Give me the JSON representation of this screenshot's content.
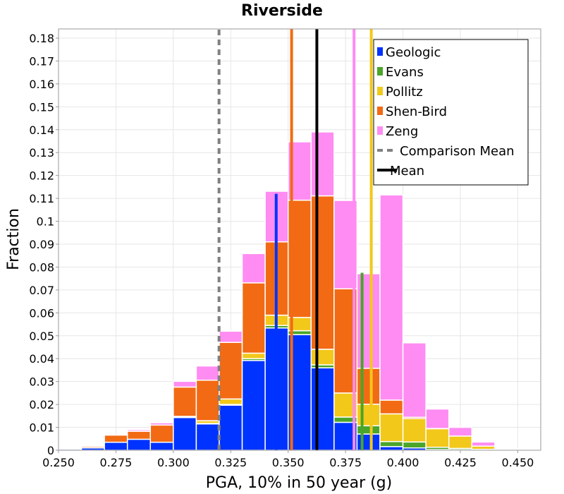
{
  "chart_data": {
    "type": "bar",
    "stacked": true,
    "title": "Riverside",
    "xlabel": "PGA, 10% in 50 year (g)",
    "ylabel": "Fraction",
    "xlim": [
      0.25,
      0.46
    ],
    "ylim": [
      0,
      0.184
    ],
    "bin_width": 0.01,
    "grid": true,
    "legend_position": "top-right",
    "x_ticks": [
      "0.250",
      "0.275",
      "0.300",
      "0.325",
      "0.350",
      "0.375",
      "0.400",
      "0.425",
      "0.450"
    ],
    "y_ticks": [
      "0",
      "0.01",
      "0.02",
      "0.03",
      "0.04",
      "0.05",
      "0.06",
      "0.07",
      "0.08",
      "0.09",
      "0.1",
      "0.11",
      "0.12",
      "0.13",
      "0.14",
      "0.15",
      "0.16",
      "0.17",
      "0.18"
    ],
    "x": [
      0.255,
      0.265,
      0.275,
      0.285,
      0.295,
      0.305,
      0.315,
      0.325,
      0.335,
      0.345,
      0.355,
      0.365,
      0.375,
      0.385,
      0.395,
      0.405,
      0.415,
      0.425,
      0.435,
      0.445,
      0.455
    ],
    "series": [
      {
        "name": "Geologic",
        "color": "#0033ff",
        "values": [
          0.0005,
          0.001,
          0.0035,
          0.0048,
          0.0035,
          0.0143,
          0.0115,
          0.0197,
          0.0392,
          0.0534,
          0.0505,
          0.036,
          0.0122,
          0.0071,
          0.0016,
          0.001,
          0.0003,
          0.0002,
          0.0001,
          0.0,
          0.0
        ]
      },
      {
        "name": "Evans",
        "color": "#4aa52a",
        "values": [
          0.0,
          0.0,
          0.0,
          0.0,
          0.0,
          0.0001,
          0.0002,
          0.0003,
          0.0008,
          0.0011,
          0.0017,
          0.0013,
          0.0023,
          0.0036,
          0.0022,
          0.0026,
          0.001,
          0.0006,
          0.0003,
          0.0001,
          0.0
        ]
      },
      {
        "name": "Pollitz",
        "color": "#f2c81a",
        "values": [
          0.0,
          0.0,
          0.0,
          0.0,
          0.0,
          0.0004,
          0.0012,
          0.0024,
          0.0024,
          0.0045,
          0.0058,
          0.0068,
          0.0105,
          0.0094,
          0.0121,
          0.0102,
          0.0081,
          0.0054,
          0.0014,
          0.0004,
          0.0002
        ]
      },
      {
        "name": "Shen-Bird",
        "color": "#f26a14",
        "values": [
          0.0004,
          0.0006,
          0.0031,
          0.0035,
          0.0075,
          0.0128,
          0.0177,
          0.0247,
          0.0307,
          0.032,
          0.0512,
          0.067,
          0.0455,
          0.0157,
          0.006,
          0.0006,
          0.0001,
          0.0,
          0.0,
          0.0,
          0.0
        ]
      },
      {
        "name": "Zeng",
        "color": "#ff8cf2",
        "values": [
          0.0,
          0.0002,
          0.0,
          0.0007,
          0.001,
          0.0025,
          0.0062,
          0.0049,
          0.0128,
          0.0221,
          0.0255,
          0.0279,
          0.0386,
          0.0413,
          0.0896,
          0.0325,
          0.0085,
          0.0038,
          0.0018,
          0.0003,
          0.0
        ]
      }
    ],
    "vertical_lines": [
      {
        "name": "Geologic",
        "x": 0.3448,
        "ymax": 0.112,
        "color": "#0033ff",
        "style": "solid",
        "legend": false
      },
      {
        "name": "Shen-Bird",
        "x": 0.3515,
        "ymax": 0.184,
        "color": "#f26a14",
        "style": "solid",
        "legend": false
      },
      {
        "name": "Zeng",
        "x": 0.3787,
        "ymax": 0.184,
        "color": "#ff8cf2",
        "style": "solid",
        "legend": false
      },
      {
        "name": "Evans",
        "x": 0.3822,
        "ymax": 0.0775,
        "color": "#4aa52a",
        "style": "solid",
        "legend": false
      },
      {
        "name": "Pollitz",
        "x": 0.3862,
        "ymax": 0.184,
        "color": "#f2c81a",
        "style": "solid",
        "legend": false
      },
      {
        "name": "Comparison Mean",
        "x": 0.3199,
        "ymax": 0.184,
        "color": "#808080",
        "style": "dashed",
        "legend": true
      },
      {
        "name": "Mean",
        "x": 0.3625,
        "ymax": 0.184,
        "color": "#000000",
        "style": "solid",
        "legend": true
      }
    ]
  }
}
